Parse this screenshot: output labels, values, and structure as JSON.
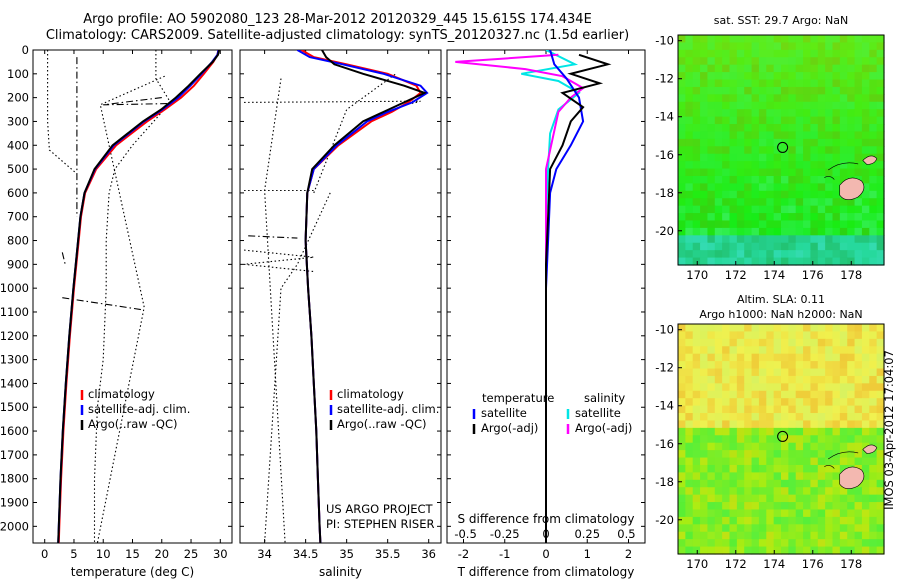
{
  "title_line1": "Argo profile: AO 5902080_123 28-Mar-2012 20120329_445 15.615S 174.434E",
  "title_line2": "Climatology: CARS2009. Satellite-adjusted climatology: synTS_20120327.nc (1.5d earlier)",
  "colors": {
    "climatology": "#ff0000",
    "satellite": "#0000ff",
    "argo": "#000000",
    "satellite_diff": "#00e5e5",
    "argo_diff": "#ff00ff"
  },
  "chart_data": [
    {
      "type": "line",
      "xlabel": "temperature (deg C)",
      "ylabel": "",
      "xticks": [
        "0",
        "5",
        "10",
        "15",
        "20",
        "25",
        "30"
      ],
      "xlim": [
        -2,
        32
      ],
      "ylim": [
        2070,
        0
      ],
      "yticks": [
        "0",
        "100",
        "200",
        "300",
        "400",
        "500",
        "600",
        "700",
        "800",
        "900",
        "1000",
        "1100",
        "1200",
        "1300",
        "1400",
        "1500",
        "1600",
        "1700",
        "1800",
        "1900",
        "2000"
      ],
      "legend": {
        "placement": "lower-center",
        "entries": [
          "climatology",
          "satellite-adj. clim.",
          "Argo(..raw -QC)"
        ]
      },
      "series": [
        {
          "name": "climatology",
          "depth": [
            0,
            20,
            50,
            100,
            150,
            200,
            250,
            300,
            400,
            500,
            600,
            700,
            800,
            1000,
            1200,
            1400,
            1600,
            1800,
            2000,
            2070
          ],
          "values": [
            29.7,
            29.5,
            28.8,
            27.2,
            25.5,
            23.3,
            20.5,
            17.5,
            12.2,
            8.8,
            6.9,
            6.2,
            5.8,
            5.0,
            4.3,
            3.7,
            3.2,
            2.8,
            2.5,
            2.4
          ]
        },
        {
          "name": "satellite-adj. clim.",
          "depth": [
            0,
            20,
            50,
            100,
            150,
            200,
            250,
            300,
            400,
            500,
            600,
            700,
            800,
            1000,
            1200,
            1400,
            1600,
            1800,
            2000,
            2070
          ],
          "values": [
            29.7,
            29.5,
            28.6,
            26.8,
            24.9,
            22.8,
            20.1,
            17.0,
            11.8,
            8.6,
            6.8,
            6.1,
            5.7,
            4.9,
            4.2,
            3.6,
            3.1,
            2.7,
            2.4,
            2.3
          ]
        },
        {
          "name": "Argo(..raw -QC)",
          "depth": [
            0,
            20,
            50,
            100,
            150,
            200,
            250,
            300,
            400,
            500,
            600,
            700,
            800,
            1000,
            1200,
            1400,
            1600,
            1800,
            2000,
            2070
          ],
          "values": [
            29.8,
            29.6,
            28.7,
            26.6,
            24.6,
            22.4,
            19.9,
            16.8,
            11.6,
            8.5,
            6.8,
            6.1,
            5.7,
            4.9,
            4.2,
            3.6,
            3.1,
            2.7,
            2.4,
            2.3
          ]
        }
      ],
      "qc_series": [
        {
          "style": "dotted",
          "depth": [
            0,
            100,
            200,
            300,
            420,
            520
          ],
          "values": [
            0.5,
            0.5,
            0.5,
            0.5,
            0.8,
            5.5
          ]
        },
        {
          "style": "dotted",
          "depth": [
            0,
            120,
            220,
            400,
            500,
            600,
            800,
            1000,
            1300,
            1500,
            1800,
            2000,
            2070
          ],
          "values": [
            19,
            19,
            21.5,
            15,
            12,
            11,
            10.5,
            10.5,
            10,
            9,
            8.5,
            8.5,
            8.5
          ]
        },
        {
          "style": "dotted",
          "depth": [
            110,
            230,
            1080,
            2070
          ],
          "values": [
            20.5,
            9.5,
            17,
            9
          ]
        },
        {
          "style": "dashdot",
          "depth": [
            30,
            700
          ],
          "values": [
            5.5,
            5.5
          ]
        },
        {
          "style": "dashdot",
          "depth": [
            200,
            230,
            225
          ],
          "values": [
            20,
            10,
            21
          ]
        },
        {
          "style": "dashdot",
          "depth": [
            1040,
            1090
          ],
          "values": [
            3,
            16.5
          ]
        },
        {
          "style": "dashdot",
          "depth": [
            850,
            900
          ],
          "values": [
            3,
            3.5
          ]
        }
      ]
    },
    {
      "type": "line",
      "xlabel": "salinity",
      "ylabel": "",
      "xticks": [
        "34",
        "34.5",
        "35",
        "35.5",
        "36"
      ],
      "xlim": [
        33.7,
        36.15
      ],
      "ylim": [
        2070,
        0
      ],
      "legend": {
        "placement": "lower-center",
        "entries": [
          "climatology",
          "satellite-adj. clim.",
          "Argo(..raw -QC)"
        ]
      },
      "annotation": [
        "US ARGO PROJECT",
        "PI: STEPHEN RISER"
      ],
      "series": [
        {
          "name": "climatology",
          "depth": [
            0,
            30,
            60,
            100,
            150,
            180,
            220,
            260,
            300,
            400,
            500,
            600,
            800,
            1000,
            1200,
            1400,
            1600,
            1800,
            2000,
            2070
          ],
          "values": [
            34.45,
            34.6,
            35.0,
            35.5,
            35.85,
            35.9,
            35.75,
            35.55,
            35.3,
            34.9,
            34.6,
            34.52,
            34.5,
            34.53,
            34.57,
            34.6,
            34.63,
            34.65,
            34.67,
            34.68
          ]
        },
        {
          "name": "satellite-adj. clim.",
          "depth": [
            0,
            30,
            60,
            100,
            150,
            180,
            220,
            260,
            300,
            400,
            500,
            600,
            800,
            1000,
            1200,
            1400,
            1600,
            1800,
            2000,
            2070
          ],
          "values": [
            34.4,
            34.55,
            34.95,
            35.45,
            35.9,
            35.98,
            35.8,
            35.5,
            35.25,
            34.88,
            34.6,
            34.52,
            34.5,
            34.53,
            34.57,
            34.6,
            34.63,
            34.65,
            34.67,
            34.68
          ]
        },
        {
          "name": "Argo(..raw -QC)",
          "depth": [
            0,
            30,
            60,
            100,
            150,
            180,
            220,
            260,
            300,
            400,
            500,
            600,
            800,
            1000,
            1200,
            1400,
            1600,
            1800,
            2000,
            2070
          ],
          "values": [
            34.7,
            34.75,
            34.85,
            35.2,
            35.7,
            35.95,
            35.7,
            35.45,
            35.2,
            34.85,
            34.58,
            34.52,
            34.5,
            34.53,
            34.57,
            34.6,
            34.63,
            34.65,
            34.67,
            34.68
          ]
        }
      ],
      "qc_series": [
        {
          "style": "dotted",
          "depth": [
            220,
            215,
            225
          ],
          "values": [
            33.75,
            35.9,
            35.8
          ]
        },
        {
          "style": "dotted",
          "depth": [
            120,
            590,
            2070
          ],
          "values": [
            34.2,
            34.0,
            34.25
          ]
        },
        {
          "style": "dotted",
          "depth": [
            600,
            900,
            1000,
            2070
          ],
          "values": [
            34.8,
            34.4,
            34.2,
            34.0
          ]
        },
        {
          "style": "dotted",
          "depth": [
            600,
            250,
            100
          ],
          "values": [
            34.6,
            35.0,
            35.6
          ]
        },
        {
          "style": "dotted",
          "depth": [
            590,
            590
          ],
          "values": [
            33.75,
            34.6
          ]
        },
        {
          "style": "dotted",
          "depth": [
            840,
            870,
            900,
            930
          ],
          "values": [
            33.75,
            34.6,
            33.75,
            34.6
          ]
        },
        {
          "style": "dashdot",
          "depth": [
            780,
            790
          ],
          "values": [
            33.8,
            34.4
          ]
        }
      ]
    },
    {
      "type": "line",
      "xlabel": "T difference from climatology",
      "ylabel": "",
      "xticks": [
        "-2",
        "-1",
        "0",
        "1",
        "2"
      ],
      "xlim": [
        -2.4,
        2.4
      ],
      "ylim": [
        2070,
        0
      ],
      "secondary_xlabel": "S difference from climatology",
      "secondary_xticks": [
        "-0.5",
        "-0.25",
        "0",
        "0.25",
        "0.5"
      ],
      "legend": {
        "placement": "lower-center",
        "groups": [
          {
            "title": "temperature",
            "entries": [
              "satellite",
              "Argo(-adj)"
            ]
          },
          {
            "title": "salinity",
            "entries": [
              "satellite",
              "Argo(-adj)"
            ]
          }
        ]
      },
      "series": [
        {
          "name": "satellite",
          "quantity": "temperature",
          "depth": [
            0,
            60,
            120,
            200,
            300,
            400,
            500,
            600,
            800,
            1000,
            1400,
            1800,
            2070
          ],
          "values": [
            0.1,
            0.2,
            0.5,
            0.8,
            0.9,
            0.6,
            0.25,
            0.1,
            0.05,
            0.0,
            0.0,
            0.0,
            0.0
          ]
        },
        {
          "name": "Argo(-adj)",
          "quantity": "temperature",
          "depth": [
            20,
            60,
            100,
            140,
            180,
            240,
            300,
            400,
            500,
            700,
            900,
            1400,
            1800,
            2070
          ],
          "values": [
            0.8,
            1.5,
            0.6,
            1.3,
            0.4,
            0.9,
            0.6,
            0.4,
            0.1,
            0.05,
            0.0,
            0.0,
            0.0,
            0.0
          ]
        },
        {
          "name": "satellite",
          "quantity": "salinity",
          "depth": [
            0,
            60,
            100,
            130,
            180,
            250,
            350,
            500,
            700,
            900,
            1200,
            1500,
            1800,
            2070
          ],
          "values": [
            0.0,
            0.7,
            -0.6,
            0.3,
            0.8,
            0.3,
            0.1,
            0.05,
            0.0,
            0.0,
            0.0,
            0.0,
            0.0,
            0.0
          ]
        },
        {
          "name": "Argo(-adj)",
          "quantity": "salinity",
          "depth": [
            20,
            50,
            80,
            110,
            160,
            200,
            260,
            500,
            800,
            1200,
            1600,
            2070
          ],
          "values": [
            0.3,
            -2.2,
            -0.5,
            0.4,
            0.9,
            0.6,
            0.3,
            0.0,
            0.0,
            0.0,
            0.0,
            0.0
          ]
        }
      ]
    }
  ],
  "maps": [
    {
      "title": "sat. SST: 29.7  Argo: NaN",
      "title_lines": [
        "sat. SST: 29.7  Argo: NaN"
      ],
      "xticks": [
        "170",
        "172",
        "174",
        "176",
        "178"
      ],
      "yticks": [
        "-10",
        "-12",
        "-14",
        "-16",
        "-18",
        "-20"
      ],
      "marker": {
        "lon": 174.434,
        "lat": -15.615
      }
    },
    {
      "title": "Altim. SLA: 0.11",
      "title_lines": [
        "Altim. SLA: 0.11",
        "Argo h1000: NaN h2000: NaN"
      ],
      "xticks": [
        "170",
        "172",
        "174",
        "176",
        "178"
      ],
      "yticks": [
        "-10",
        "-12",
        "-14",
        "-16",
        "-18",
        "-20"
      ],
      "marker": {
        "lon": 174.434,
        "lat": -15.615
      }
    }
  ],
  "footer_vertical": "IMOS 03-Apr-2012 17:04:07"
}
